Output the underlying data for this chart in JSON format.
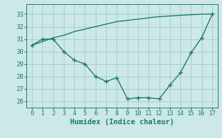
{
  "line1_x": [
    0,
    1,
    2,
    3,
    4,
    5,
    6,
    7,
    8,
    9,
    10,
    11,
    12,
    13,
    14,
    15,
    16,
    17
  ],
  "line1_y": [
    30.5,
    31.0,
    31.0,
    30.0,
    29.3,
    29.0,
    28.0,
    27.6,
    27.9,
    26.2,
    26.3,
    26.3,
    26.2,
    27.3,
    28.3,
    29.9,
    31.1,
    33.0
  ],
  "line2_x": [
    0,
    1,
    2,
    3,
    4,
    5,
    6,
    7,
    8,
    9,
    10,
    11,
    12,
    13,
    14,
    15,
    16,
    17
  ],
  "line2_y": [
    30.5,
    30.8,
    31.1,
    31.3,
    31.6,
    31.8,
    32.0,
    32.2,
    32.4,
    32.5,
    32.6,
    32.7,
    32.8,
    32.85,
    32.9,
    32.95,
    33.0,
    33.0
  ],
  "line_color": "#1a7a6e",
  "bg_color": "#cce8e8",
  "grid_color": "#aacccc",
  "xlabel": "Humidex (Indice chaleur)",
  "ylim": [
    25.5,
    33.8
  ],
  "xlim": [
    -0.5,
    17.5
  ],
  "yticks": [
    26,
    27,
    28,
    29,
    30,
    31,
    32,
    33
  ],
  "xticks": [
    0,
    1,
    2,
    3,
    4,
    5,
    6,
    7,
    8,
    9,
    10,
    11,
    12,
    13,
    14,
    15,
    16,
    17
  ],
  "marker": "+",
  "markersize": 4,
  "linewidth": 1.0,
  "xlabel_fontsize": 7.5,
  "tick_fontsize": 6.5
}
